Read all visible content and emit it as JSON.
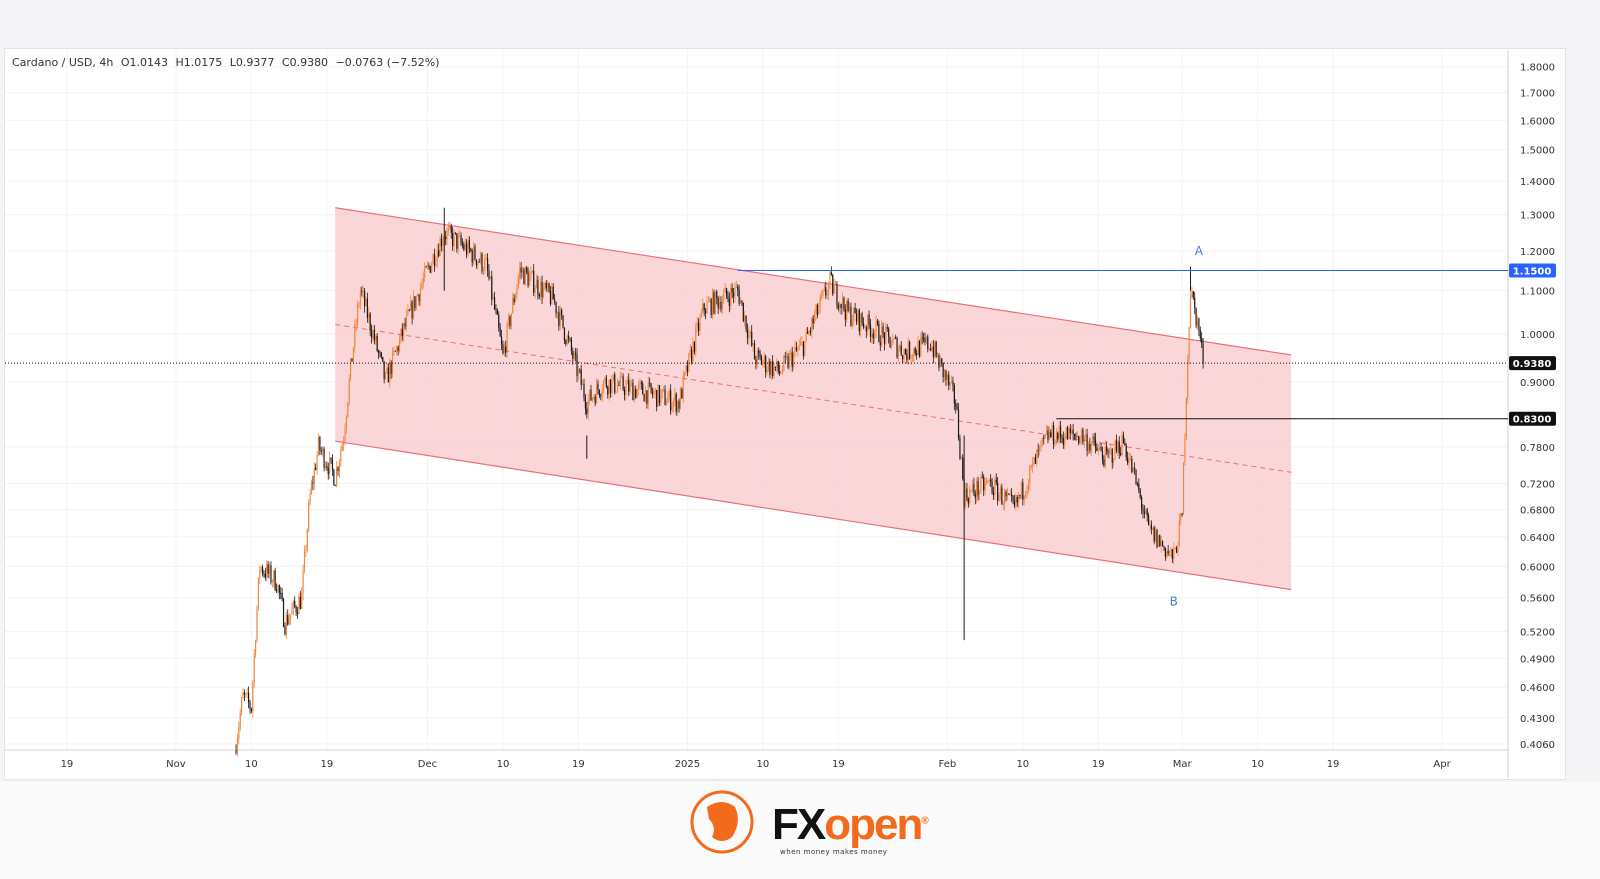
{
  "legend": {
    "symbol": "Cardano / USD, 4h",
    "open": "O1.0143",
    "high": "H1.0175",
    "low": "L0.9377",
    "close": "C0.9380",
    "change": "−0.0763 (−7.52%)"
  },
  "brand": {
    "name_fx": "FX",
    "name_open": "open",
    "registered": "®",
    "tagline": "when money makes money"
  },
  "colors": {
    "up": "#f0883e",
    "down": "#1a1a1a",
    "channel_fill": "#f8c8cc",
    "channel_line": "#e8707a",
    "level_blue": "#2962ff",
    "level_black": "#111111",
    "label_blue": "#2962ff"
  },
  "chart_data": {
    "type": "candlestick",
    "title": "Cardano / USD, 4h",
    "scale": "log",
    "ylim": [
      0.4,
      1.85
    ],
    "y_ticks": [
      "1.8000",
      "1.7000",
      "1.6000",
      "1.5000",
      "1.4000",
      "1.3000",
      "1.2000",
      "1.1000",
      "1.0000",
      "0.9000",
      "0.7800",
      "0.7200",
      "0.6800",
      "0.6400",
      "0.6000",
      "0.5600",
      "0.5200",
      "0.4900",
      "0.4600",
      "0.4300",
      "0.4060"
    ],
    "x_ticks": [
      {
        "date": "2024-10-19",
        "label": "19"
      },
      {
        "date": "2024-11-01",
        "label": "Nov"
      },
      {
        "date": "2024-11-10",
        "label": "10"
      },
      {
        "date": "2024-11-19",
        "label": "19"
      },
      {
        "date": "2024-12-01",
        "label": "Dec"
      },
      {
        "date": "2024-12-10",
        "label": "10"
      },
      {
        "date": "2024-12-19",
        "label": "19"
      },
      {
        "date": "2025-01-01",
        "label": "2025"
      },
      {
        "date": "2025-01-10",
        "label": "10"
      },
      {
        "date": "2025-01-19",
        "label": "19"
      },
      {
        "date": "2025-02-01",
        "label": "Feb"
      },
      {
        "date": "2025-02-10",
        "label": "10"
      },
      {
        "date": "2025-02-19",
        "label": "19"
      },
      {
        "date": "2025-03-01",
        "label": "Mar"
      },
      {
        "date": "2025-03-10",
        "label": "10"
      },
      {
        "date": "2025-03-19",
        "label": "19"
      },
      {
        "date": "2025-04-01",
        "label": "Apr"
      }
    ],
    "price_path": [
      [
        "2024-11-08",
        0.4
      ],
      [
        "2024-11-09",
        0.45
      ],
      [
        "2024-11-10",
        0.44
      ],
      [
        "2024-11-11",
        0.6
      ],
      [
        "2024-11-13",
        0.58
      ],
      [
        "2024-11-14",
        0.53
      ],
      [
        "2024-11-16",
        0.56
      ],
      [
        "2024-11-17",
        0.7
      ],
      [
        "2024-11-18",
        0.78
      ],
      [
        "2024-11-20",
        0.73
      ],
      [
        "2024-11-21",
        0.8
      ],
      [
        "2024-11-23",
        1.1
      ],
      [
        "2024-11-26",
        0.9
      ],
      [
        "2024-11-29",
        1.05
      ],
      [
        "2024-12-03",
        1.25
      ],
      [
        "2024-12-06",
        1.2
      ],
      [
        "2024-12-08",
        1.16
      ],
      [
        "2024-12-10",
        0.95
      ],
      [
        "2024-12-12",
        1.15
      ],
      [
        "2024-12-16",
        1.08
      ],
      [
        "2024-12-20",
        0.86
      ],
      [
        "2024-12-22",
        0.9
      ],
      [
        "2024-12-27",
        0.88
      ],
      [
        "2024-12-31",
        0.86
      ],
      [
        "2025-01-03",
        1.06
      ],
      [
        "2025-01-07",
        1.1
      ],
      [
        "2025-01-09",
        0.95
      ],
      [
        "2025-01-12",
        0.92
      ],
      [
        "2025-01-15",
        0.98
      ],
      [
        "2025-01-18",
        1.12
      ],
      [
        "2025-01-20",
        1.05
      ],
      [
        "2025-01-24",
        1.0
      ],
      [
        "2025-01-27",
        0.96
      ],
      [
        "2025-01-30",
        0.98
      ],
      [
        "2025-02-02",
        0.86
      ],
      [
        "2025-02-03",
        0.7
      ],
      [
        "2025-02-06",
        0.72
      ],
      [
        "2025-02-09",
        0.68
      ],
      [
        "2025-02-13",
        0.8
      ],
      [
        "2025-02-17",
        0.8
      ],
      [
        "2025-02-20",
        0.76
      ],
      [
        "2025-02-22",
        0.79
      ],
      [
        "2025-02-25",
        0.65
      ],
      [
        "2025-02-28",
        0.61
      ],
      [
        "2025-03-01",
        0.67
      ],
      [
        "2025-03-02",
        1.1
      ],
      [
        "2025-03-03",
        1.01
      ],
      [
        "2025-03-03T12",
        0.938
      ]
    ],
    "spikes": [
      [
        "2025-02-03",
        0.51
      ],
      [
        "2024-12-20",
        0.76
      ],
      [
        "2024-12-03",
        1.32
      ],
      [
        "2025-03-02",
        1.16
      ]
    ],
    "channel": {
      "start": "2024-11-20",
      "end": "2025-03-14",
      "upper": [
        1.32,
        0.955
      ],
      "lower": [
        0.79,
        0.57
      ]
    },
    "levels": [
      {
        "price": 1.15,
        "from": "2025-01-07",
        "label": "1.1500",
        "style": "blue"
      },
      {
        "price": 0.83,
        "from": "2025-02-14",
        "label": "0.8300",
        "style": "black"
      },
      {
        "price": 0.938,
        "from": "2024-10-01",
        "label": "0.9380",
        "style": "dotted"
      }
    ],
    "annotations": [
      {
        "text": "A",
        "date": "2025-03-03",
        "price": 1.2
      },
      {
        "text": "B",
        "date": "2025-02-28",
        "price": 0.555
      }
    ]
  }
}
